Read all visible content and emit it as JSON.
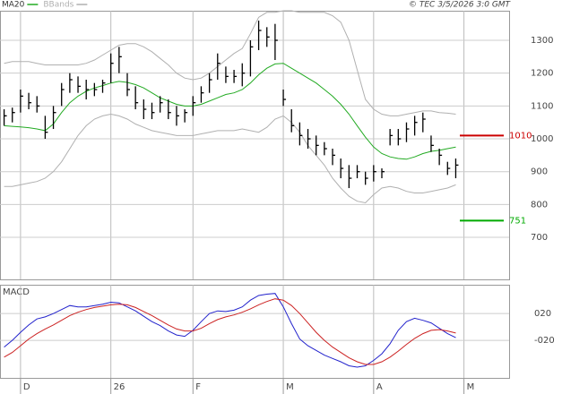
{
  "chart_data": [
    {
      "type": "ohlc",
      "copyright": "© TEC 3/5/2026 3:0 GMT",
      "bar_color": "#000000",
      "high": [
        1090,
        1095,
        1150,
        1140,
        1130,
        1070,
        1100,
        1170,
        1200,
        1190,
        1180,
        1170,
        1180,
        1260,
        1280,
        1200,
        1160,
        1120,
        1110,
        1130,
        1120,
        1100,
        1090,
        1130,
        1160,
        1200,
        1260,
        1220,
        1210,
        1230,
        1300,
        1360,
        1340,
        1350,
        1150,
        1090,
        1050,
        1030,
        1010,
        990,
        970,
        940,
        920,
        920,
        900,
        920,
        910,
        1030,
        1030,
        1050,
        1070,
        1080,
        1010,
        970,
        930,
        940
      ],
      "low": [
        1040,
        1050,
        1080,
        1090,
        1080,
        1000,
        1030,
        1100,
        1140,
        1140,
        1120,
        1130,
        1140,
        1170,
        1200,
        1130,
        1090,
        1060,
        1060,
        1080,
        1060,
        1040,
        1050,
        1070,
        1110,
        1140,
        1180,
        1170,
        1170,
        1160,
        1190,
        1270,
        1280,
        1240,
        1100,
        1020,
        980,
        970,
        950,
        950,
        920,
        880,
        850,
        880,
        860,
        870,
        880,
        980,
        980,
        990,
        1010,
        1020,
        960,
        920,
        890,
        880
      ],
      "close": [
        1070,
        1080,
        1130,
        1110,
        1100,
        1020,
        1080,
        1150,
        1180,
        1160,
        1150,
        1150,
        1170,
        1230,
        1250,
        1150,
        1110,
        1090,
        1080,
        1110,
        1080,
        1070,
        1080,
        1110,
        1140,
        1180,
        1230,
        1190,
        1190,
        1200,
        1280,
        1330,
        1310,
        1300,
        1120,
        1040,
        1010,
        1000,
        980,
        970,
        950,
        910,
        880,
        900,
        880,
        900,
        900,
        1010,
        1000,
        1030,
        1050,
        1060,
        980,
        950,
        910,
        920
      ],
      "series": [
        {
          "name": "MA20",
          "color": "#22aa22",
          "values": [
            1040,
            1038,
            1036,
            1034,
            1030,
            1025,
            1045,
            1080,
            1110,
            1130,
            1145,
            1155,
            1162,
            1170,
            1175,
            1172,
            1165,
            1155,
            1140,
            1125,
            1115,
            1105,
            1100,
            1100,
            1105,
            1115,
            1125,
            1135,
            1140,
            1150,
            1170,
            1195,
            1215,
            1228,
            1230,
            1215,
            1200,
            1185,
            1170,
            1150,
            1130,
            1105,
            1075,
            1040,
            1005,
            975,
            955,
            945,
            940,
            938,
            945,
            955,
            962,
            965,
            970,
            975
          ]
        },
        {
          "name": "BBands",
          "color": "#b0b0b0",
          "upper": [
            1230,
            1235,
            1235,
            1235,
            1230,
            1225,
            1225,
            1225,
            1225,
            1225,
            1230,
            1240,
            1255,
            1270,
            1285,
            1290,
            1290,
            1280,
            1265,
            1245,
            1225,
            1200,
            1185,
            1180,
            1185,
            1200,
            1220,
            1240,
            1260,
            1275,
            1320,
            1370,
            1385,
            1385,
            1390,
            1390,
            1385,
            1385,
            1385,
            1385,
            1375,
            1355,
            1300,
            1210,
            1120,
            1090,
            1075,
            1070,
            1070,
            1075,
            1080,
            1085,
            1085,
            1080,
            1078,
            1075
          ],
          "lower": [
            855,
            855,
            860,
            865,
            870,
            880,
            900,
            930,
            970,
            1010,
            1040,
            1060,
            1070,
            1075,
            1070,
            1060,
            1045,
            1035,
            1025,
            1020,
            1015,
            1010,
            1010,
            1010,
            1015,
            1020,
            1025,
            1025,
            1025,
            1030,
            1025,
            1020,
            1035,
            1060,
            1070,
            1050,
            1020,
            980,
            950,
            920,
            880,
            850,
            825,
            810,
            805,
            830,
            850,
            855,
            850,
            840,
            835,
            835,
            840,
            845,
            850,
            860
          ]
        }
      ],
      "levels": [
        {
          "value": 1010,
          "color": "#cc0000"
        },
        {
          "value": 751,
          "color": "#00aa00"
        }
      ],
      "ylim": [
        572,
        1390
      ],
      "yticks": [
        700,
        800,
        900,
        1000,
        1100,
        1200,
        1300
      ],
      "grid": true
    },
    {
      "type": "line",
      "title": "MACD",
      "series": [
        {
          "color": "#2222cc",
          "values": [
            -30,
            -20,
            -8,
            3,
            12,
            15,
            20,
            26,
            32,
            30,
            30,
            32,
            34,
            37,
            36,
            30,
            24,
            16,
            8,
            2,
            -6,
            -12,
            -14,
            -5,
            8,
            20,
            24,
            23,
            25,
            30,
            40,
            47,
            49,
            50,
            30,
            5,
            -18,
            -28,
            -35,
            -42,
            -47,
            -52,
            -58,
            -60,
            -58,
            -50,
            -40,
            -25,
            -5,
            8,
            13,
            10,
            6,
            -2,
            -10,
            -16
          ]
        },
        {
          "color": "#cc2222",
          "values": [
            -45,
            -38,
            -28,
            -18,
            -10,
            -3,
            3,
            10,
            17,
            22,
            26,
            29,
            31,
            33,
            34,
            33,
            29,
            23,
            17,
            10,
            3,
            -3,
            -6,
            -6,
            -2,
            5,
            11,
            15,
            18,
            22,
            27,
            33,
            38,
            42,
            40,
            32,
            20,
            6,
            -8,
            -20,
            -30,
            -38,
            -46,
            -52,
            -56,
            -56,
            -52,
            -45,
            -36,
            -26,
            -17,
            -10,
            -5,
            -4,
            -6,
            -9
          ]
        }
      ],
      "ylim": [
        -76,
        63
      ],
      "yticks": [
        {
          "value": 20,
          "label": "020"
        },
        {
          "value": -20,
          "label": "-020"
        }
      ],
      "xlim": [
        -0.5,
        61.5
      ],
      "xticks": [
        {
          "value": 2,
          "label": "D"
        },
        {
          "value": 13,
          "label": "26"
        },
        {
          "value": 23,
          "label": "F"
        },
        {
          "value": 34,
          "label": "M"
        },
        {
          "value": 45,
          "label": "A"
        },
        {
          "value": 56,
          "label": "M"
        }
      ],
      "grid": true
    }
  ]
}
